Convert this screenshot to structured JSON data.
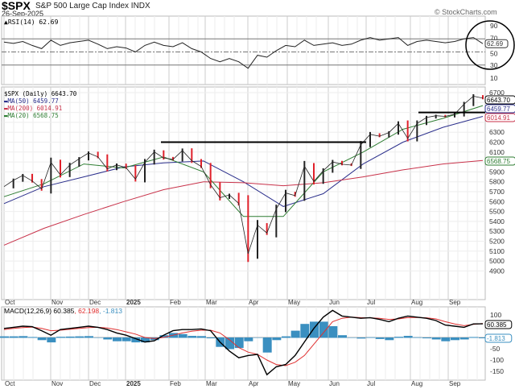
{
  "header": {
    "symbol": "$SPX",
    "name": "S&P 500 Large Cap Index",
    "exchange": "INDX",
    "date": "26-Sep-2025",
    "brand": "© StockCharts.com"
  },
  "chart_data": [
    {
      "type": "line",
      "title": "RSI(14) 62.69",
      "legend": "RSI(14) 62.69",
      "last_value": "62.69",
      "ylim": [
        0,
        100
      ],
      "yticks": [
        "90",
        "70",
        "50",
        "30",
        "10"
      ],
      "overbought": 70,
      "oversold": 30,
      "x": [
        "2024-10-04",
        "2024-10-11",
        "2024-10-18",
        "2024-10-25",
        "2024-11-01",
        "2024-11-08",
        "2024-11-15",
        "2024-11-22",
        "2024-11-29",
        "2024-12-06",
        "2024-12-13",
        "2024-12-20",
        "2024-12-27",
        "2025-01-03",
        "2025-01-10",
        "2025-01-17",
        "2025-01-24",
        "2025-01-31",
        "2025-02-07",
        "2025-02-14",
        "2025-02-21",
        "2025-02-28",
        "2025-03-07",
        "2025-03-14",
        "2025-03-21",
        "2025-03-28",
        "2025-04-04",
        "2025-04-11",
        "2025-04-17",
        "2025-04-25",
        "2025-05-02",
        "2025-05-09",
        "2025-05-16",
        "2025-05-23",
        "2025-05-30",
        "2025-06-06",
        "2025-06-13",
        "2025-06-20",
        "2025-06-27",
        "2025-07-03",
        "2025-07-11",
        "2025-07-18",
        "2025-07-25",
        "2025-08-01",
        "2025-08-08",
        "2025-08-15",
        "2025-08-22",
        "2025-08-29",
        "2025-09-05",
        "2025-09-12",
        "2025-09-19",
        "2025-09-26"
      ],
      "values": [
        65,
        63,
        66,
        60,
        55,
        68,
        60,
        64,
        66,
        68,
        62,
        55,
        58,
        56,
        50,
        60,
        65,
        60,
        58,
        64,
        55,
        50,
        40,
        35,
        40,
        35,
        25,
        45,
        42,
        52,
        60,
        58,
        68,
        60,
        62,
        64,
        60,
        62,
        68,
        72,
        68,
        70,
        72,
        60,
        66,
        68,
        66,
        64,
        66,
        70,
        72,
        62.69
      ]
    },
    {
      "type": "line",
      "title": "$SPX (Daily) 6643.70",
      "ylim": [
        4800,
        6750
      ],
      "yticks": [
        "6700",
        "6600",
        "6500",
        "6400",
        "6300",
        "6200",
        "6100",
        "6000",
        "5900",
        "5800",
        "5700",
        "5600",
        "5500",
        "5400",
        "5300",
        "5200",
        "5100",
        "5000",
        "4900"
      ],
      "xticks": [
        "Oct",
        "Nov",
        "Dec",
        "2025",
        "Feb",
        "Mar",
        "Apr",
        "May",
        "Jun",
        "Jul",
        "Aug",
        "Sep"
      ],
      "series": [
        {
          "name": "$SPX (Daily) 6643.70",
          "label": "6643.70",
          "color": "#000000",
          "values": [
            5751,
            5815,
            5864,
            5808,
            5729,
            5996,
            5870,
            5969,
            6032,
            6090,
            6051,
            5931,
            5971,
            5942,
            5827,
            5997,
            6101,
            6041,
            6026,
            6115,
            6013,
            5955,
            5770,
            5639,
            5668,
            5581,
            5074,
            5363,
            5283,
            5525,
            5687,
            5660,
            5958,
            5803,
            5912,
            6000,
            5977,
            5968,
            6173,
            6279,
            6260,
            6297,
            6389,
            6238,
            6389,
            6449,
            6467,
            6460,
            6482,
            6584,
            6664,
            6643.7
          ]
        },
        {
          "name": "MA(50) 6459.77",
          "label": "6459.77",
          "color": "#2b2f8c",
          "monthly": [
            5580,
            5750,
            5850,
            5950,
            5990,
            6010,
            5800,
            5550,
            5680,
            5980,
            6200,
            6350,
            6459.77
          ]
        },
        {
          "name": "MA(200) 6014.91",
          "label": "6014.91",
          "color": "#c8324a",
          "monthly": [
            5160,
            5330,
            5470,
            5600,
            5720,
            5800,
            5790,
            5760,
            5790,
            5850,
            5920,
            5980,
            6014.91
          ]
        },
        {
          "name": "MA(20) 6568.75",
          "label": "6568.75",
          "color": "#2e7d32",
          "monthly": [
            5650,
            5780,
            5980,
            5940,
            6050,
            5900,
            5450,
            5450,
            5900,
            6100,
            6330,
            6440,
            6568.75
          ]
        }
      ],
      "annotations": [
        {
          "type": "hline",
          "value": 6200,
          "from": "2025-01-20",
          "to": "2025-07-01"
        },
        {
          "type": "hline",
          "value": 6500,
          "from": "2025-07-28",
          "to": "2025-09-26"
        }
      ]
    },
    {
      "type": "line",
      "title": "MACD(12,26,9) 60.385, 62.198, -1.813",
      "ylim": [
        -175,
        130
      ],
      "yticks": [
        "100",
        "50",
        "0",
        "-50",
        "-100",
        "-150"
      ],
      "legend": {
        "macd": "MACD(12,26,9) 60.385",
        "signal": ", 62.198",
        "hist": ", -1.813"
      },
      "labels": {
        "macd": "60.385",
        "hist": "-1.813"
      },
      "macd": [
        40,
        45,
        50,
        48,
        30,
        10,
        35,
        40,
        45,
        50,
        45,
        35,
        20,
        10,
        -5,
        -20,
        -15,
        10,
        30,
        35,
        35,
        38,
        30,
        -20,
        -60,
        -90,
        -80,
        -75,
        -165,
        -130,
        -120,
        -80,
        -20,
        40,
        90,
        120,
        95,
        90,
        85,
        88,
        80,
        70,
        85,
        95,
        90,
        85,
        75,
        55,
        50,
        45,
        60,
        60.385
      ],
      "signal": [
        35,
        40,
        44,
        46,
        40,
        30,
        32,
        36,
        40,
        44,
        45,
        42,
        35,
        25,
        15,
        0,
        -5,
        0,
        10,
        20,
        28,
        32,
        32,
        20,
        -10,
        -45,
        -65,
        -75,
        -100,
        -120,
        -125,
        -110,
        -80,
        -30,
        20,
        70,
        85,
        90,
        88,
        87,
        85,
        80,
        82,
        88,
        89,
        87,
        82,
        70,
        60,
        52,
        58,
        62.198
      ],
      "colors": {
        "macd": "#000000",
        "signal": "#e03030",
        "hist": "#3a8fc0"
      }
    }
  ]
}
